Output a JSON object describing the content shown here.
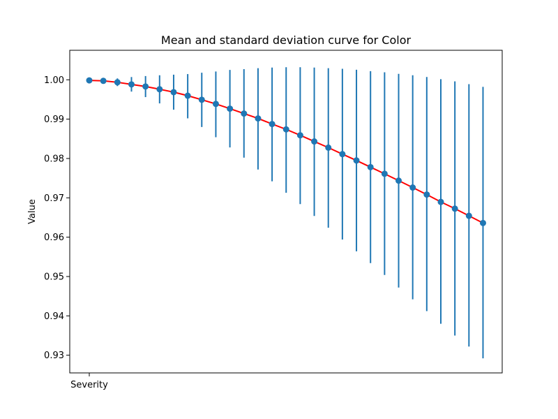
{
  "chart_data": {
    "type": "line",
    "title": "Mean and standard deviation curve for Color",
    "xlabel": "",
    "ylabel": "Value",
    "x_tick_labels": [
      "Severity"
    ],
    "ylim": [
      0.9255,
      1.0075
    ],
    "y_ticks": [
      "0.93",
      "0.94",
      "0.95",
      "0.96",
      "0.97",
      "0.98",
      "0.99",
      "1.00"
    ],
    "grid": false,
    "colors": {
      "line": "#ff0000",
      "marker": "#1f77b4",
      "errorbar": "#1f77b4"
    },
    "series": [
      {
        "x": [
          0,
          1,
          2,
          3,
          4,
          5,
          6,
          7,
          8,
          9,
          10,
          11,
          12,
          13,
          14,
          15,
          16,
          17,
          18,
          19,
          20,
          21,
          22,
          23,
          24,
          25,
          26,
          27,
          28
        ],
        "mean": [
          0.99985,
          0.99973,
          0.99937,
          0.99883,
          0.9983,
          0.9976,
          0.99686,
          0.99596,
          0.99493,
          0.99387,
          0.99266,
          0.99142,
          0.99018,
          0.98876,
          0.9874,
          0.9859,
          0.98433,
          0.98276,
          0.98111,
          0.97949,
          0.9778,
          0.97611,
          0.97437,
          0.97262,
          0.97083,
          0.96896,
          0.96725,
          0.96543,
          0.9636
        ],
        "upper": [
          1.00005,
          1.0001,
          1.00035,
          1.0007,
          1.00095,
          1.00115,
          1.0013,
          1.00145,
          1.0018,
          1.0021,
          1.0025,
          1.0027,
          1.00295,
          1.0031,
          1.0032,
          1.0032,
          1.0031,
          1.00295,
          1.0028,
          1.00255,
          1.0022,
          1.0019,
          1.0015,
          1.00115,
          1.0007,
          1.00015,
          0.9996,
          0.9989,
          0.9982
        ],
        "lower": [
          0.99965,
          0.99935,
          0.9984,
          0.997,
          0.9956,
          0.994,
          0.9924,
          0.9902,
          0.988,
          0.9854,
          0.9828,
          0.9802,
          0.9772,
          0.9742,
          0.9713,
          0.9684,
          0.9654,
          0.9624,
          0.9594,
          0.9564,
          0.9534,
          0.9504,
          0.9472,
          0.9442,
          0.9412,
          0.938,
          0.935,
          0.9322,
          0.9292
        ]
      }
    ]
  }
}
